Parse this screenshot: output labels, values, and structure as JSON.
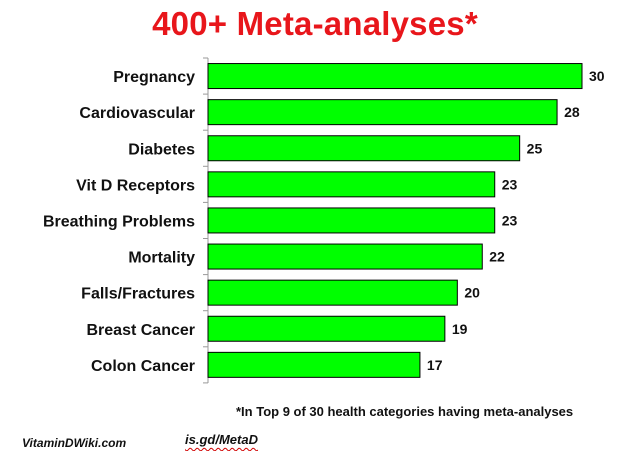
{
  "chart_data": {
    "type": "bar",
    "orientation": "horizontal",
    "title": "400+ Meta-analyses*",
    "categories": [
      "Pregnancy",
      "Cardiovascular",
      "Diabetes",
      "Vit D Receptors",
      "Breathing Problems",
      "Mortality",
      "Falls/Fractures",
      "Breast Cancer",
      "Colon Cancer"
    ],
    "values": [
      30,
      28,
      25,
      23,
      23,
      22,
      20,
      19,
      17
    ],
    "xlim": [
      0,
      30
    ],
    "xlabel": "",
    "ylabel": "",
    "grid": false,
    "data_labels": true,
    "bar_color": "#00ff00",
    "bar_outline_color": "#000000",
    "title_color": "#e8161b"
  },
  "footnote": "*In Top 9 of 30 health categories having meta-analyses",
  "site": "VitaminDWiki.com",
  "short_link": "is.gd/MetaD"
}
